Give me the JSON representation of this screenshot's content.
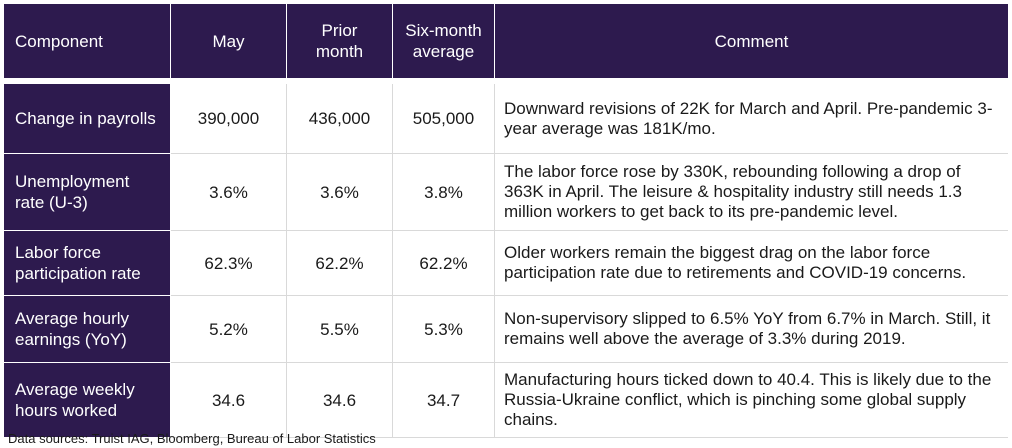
{
  "colors": {
    "header_bg": "#2d1a4e",
    "header_text": "#ffffff",
    "grid_line": "#d9d9d9"
  },
  "table": {
    "headers": {
      "component": "Component",
      "may": "May",
      "prior_month_line1": "Prior",
      "prior_month_line2": "month",
      "six_month_line1": "Six-month",
      "six_month_line2": "average",
      "comment": "Comment"
    },
    "rows": [
      {
        "component_line1": "Change in payrolls",
        "component_line2": "",
        "may": "390,000",
        "prior_month": "436,000",
        "six_month_average": "505,000",
        "comment": "Downward revisions of 22K for March and April. Pre-pandemic 3-year average was 181K/mo."
      },
      {
        "component_line1": "Unemployment",
        "component_line2": "rate (U-3)",
        "may": "3.6%",
        "prior_month": "3.6%",
        "six_month_average": "3.8%",
        "comment": "The labor force rose by 330K, rebounding following a drop of 363K in April. The leisure & hospitality industry still needs 1.3 million workers to get back to its pre-pandemic level."
      },
      {
        "component_line1": "Labor force",
        "component_line2": "participation rate",
        "may": "62.3%",
        "prior_month": "62.2%",
        "six_month_average": "62.2%",
        "comment": "Older workers remain the biggest drag on the labor force participation rate due to retirements and COVID-19 concerns."
      },
      {
        "component_line1": "Average hourly",
        "component_line2": "earnings (YoY)",
        "may": "5.2%",
        "prior_month": "5.5%",
        "six_month_average": "5.3%",
        "comment": "Non-supervisory slipped to 6.5% YoY from 6.7% in March. Still, it remains well above the average of 3.3% during 2019."
      },
      {
        "component_line1": "Average weekly",
        "component_line2": "hours worked",
        "may": "34.6",
        "prior_month": "34.6",
        "six_month_average": "34.7",
        "comment": "Manufacturing hours ticked down to 40.4. This is likely due to the Russia-Ukraine conflict, which is pinching some global supply chains."
      }
    ]
  },
  "footnote": "Data sources: Truist IAG, Bloomberg, Bureau of Labor Statistics"
}
